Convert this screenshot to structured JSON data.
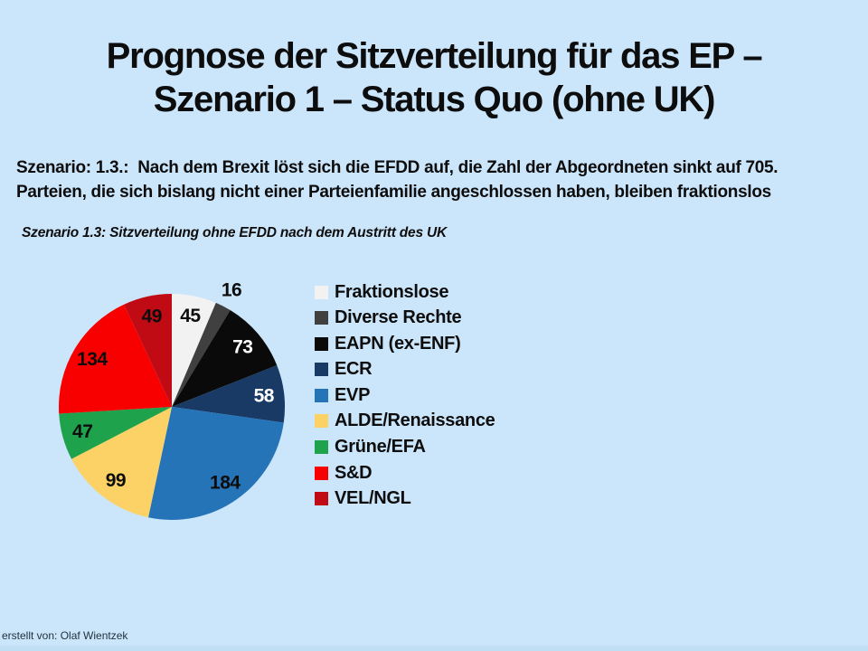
{
  "header": {
    "title_line1": "Prognose der Sitzverteilung für das EP –",
    "title_line2": "Szenario 1 – Status Quo (ohne UK)"
  },
  "description": {
    "line1": "Szenario: 1.3.:  Nach dem Brexit löst sich die EFDD auf, die Zahl der Abgeordneten sinkt auf 705.",
    "line2": "Parteien, die sich bislang nicht einer Parteienfamilie angeschlossen haben, bleiben fraktionslos"
  },
  "footer": {
    "credit": "erstellt von: Olaf Wientzek"
  },
  "colors": {
    "background": "#cbe5fa",
    "text": "#0d0d0d"
  },
  "chart_data": {
    "type": "pie",
    "title": "Szenario 1.3: Sitzverteilung ohne EFDD nach dem Austritt des UK",
    "total": 705,
    "start_angle_deg": 0,
    "direction": "clockwise",
    "legend_position": "right",
    "slices": [
      {
        "label": "Fraktionslose",
        "value": 45,
        "color": "#f2f2f2",
        "label_color": "#0d0d0d",
        "label_placement": "inside"
      },
      {
        "label": "Diverse Rechte",
        "value": 16,
        "color": "#404040",
        "label_color": "#0d0d0d",
        "label_placement": "outside"
      },
      {
        "label": "EAPN (ex-ENF)",
        "value": 73,
        "color": "#0a0a0a",
        "label_color": "#ffffff",
        "label_placement": "inside"
      },
      {
        "label": "ECR",
        "value": 58,
        "color": "#1a3a66",
        "label_color": "#ffffff",
        "label_placement": "inside"
      },
      {
        "label": "EVP",
        "value": 184,
        "color": "#2674b8",
        "label_color": "#0d0d0d",
        "label_placement": "inside"
      },
      {
        "label": "ALDE/Renaissance",
        "value": 99,
        "color": "#fcd166",
        "label_color": "#0d0d0d",
        "label_placement": "inside"
      },
      {
        "label": "Grüne/EFA",
        "value": 47,
        "color": "#1fa24c",
        "label_color": "#0d0d0d",
        "label_placement": "inside"
      },
      {
        "label": "S&D",
        "value": 134,
        "color": "#f80000",
        "label_color": "#0d0d0d",
        "label_placement": "inside"
      },
      {
        "label": "VEL/NGL",
        "value": 49,
        "color": "#c00b15",
        "label_color": "#0d0d0d",
        "label_placement": "inside"
      }
    ]
  }
}
